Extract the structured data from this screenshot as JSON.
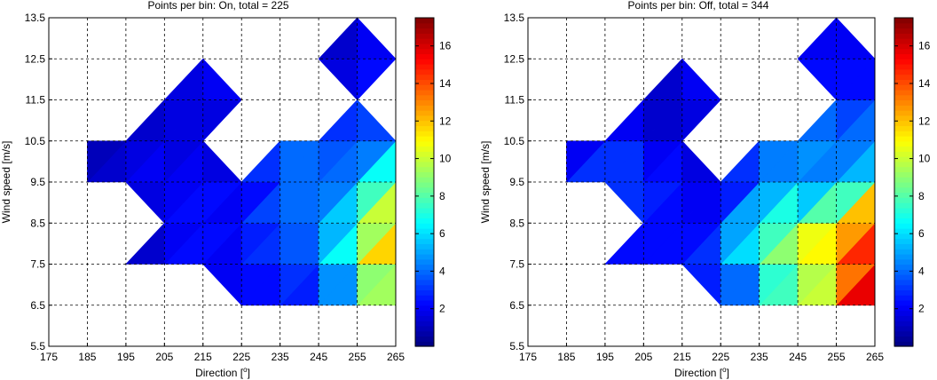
{
  "chart_data": [
    {
      "type": "heatmap",
      "title": "Points per bin: On, total = 225",
      "xlabel": "Direction [",
      "xlabel_sup": "o",
      "xlabel_end": "]",
      "ylabel": "Wind speed [m/s]",
      "x_ticks": [
        "175",
        "185",
        "195",
        "205",
        "215",
        "225",
        "235",
        "245",
        "255",
        "265"
      ],
      "y_ticks": [
        "5.5",
        "6.5",
        "7.5",
        "8.5",
        "9.5",
        "10.5",
        "11.5",
        "12.5",
        "13.5"
      ],
      "xlim": [
        175,
        265
      ],
      "ylim": [
        5.5,
        13.5
      ],
      "grid": true,
      "colorbar": {
        "range": [
          0,
          17.5
        ],
        "ticks": [
          "2",
          "4",
          "6",
          "8",
          "10",
          "12",
          "14",
          "16"
        ]
      },
      "x": [
        185,
        195,
        205,
        215,
        225,
        235,
        245,
        255,
        265
      ],
      "y": [
        6.5,
        7.5,
        8.5,
        9.5,
        10.5,
        11.5,
        12.5,
        13.5
      ],
      "z": [
        [
          null,
          null,
          null,
          null,
          2,
          2,
          2,
          4,
          9
        ],
        [
          null,
          1,
          2,
          2,
          2,
          3,
          4,
          8,
          15
        ],
        [
          null,
          null,
          1,
          3,
          2,
          4,
          4,
          8,
          12
        ],
        [
          1,
          2,
          2,
          3,
          1,
          4,
          4,
          5,
          10
        ],
        [
          1,
          1,
          2,
          1,
          null,
          4,
          4,
          3,
          5
        ],
        [
          null,
          null,
          1,
          2,
          2,
          null,
          null,
          2,
          null
        ],
        [
          null,
          null,
          null,
          2,
          null,
          null,
          1,
          2,
          3
        ],
        [
          null,
          null,
          null,
          null,
          null,
          null,
          null,
          1,
          null
        ]
      ]
    },
    {
      "type": "heatmap",
      "title": "Points per bin: Off, total = 344",
      "xlabel": "Direction [",
      "xlabel_sup": "o",
      "xlabel_end": "]",
      "ylabel": "Wind speed [m/s]",
      "x_ticks": [
        "175",
        "185",
        "195",
        "205",
        "215",
        "225",
        "235",
        "245",
        "255",
        "265"
      ],
      "y_ticks": [
        "5.5",
        "6.5",
        "7.5",
        "8.5",
        "9.5",
        "10.5",
        "11.5",
        "12.5",
        "13.5"
      ],
      "xlim": [
        175,
        265
      ],
      "ylim": [
        5.5,
        13.5
      ],
      "grid": true,
      "colorbar": {
        "range": [
          0,
          17.5
        ],
        "ticks": [
          "2",
          "4",
          "6",
          "8",
          "10",
          "12",
          "14",
          "16"
        ]
      },
      "x": [
        185,
        195,
        205,
        215,
        225,
        235,
        245,
        255,
        265
      ],
      "y": [
        6.5,
        7.5,
        8.5,
        9.5,
        10.5,
        11.5,
        12.5,
        13.5
      ],
      "z": [
        [
          null,
          null,
          null,
          null,
          2,
          4,
          7,
          13,
          17
        ],
        [
          null,
          2,
          3,
          2,
          4,
          6,
          12,
          10,
          17
        ],
        [
          null,
          null,
          2,
          2,
          3,
          8,
          9,
          11,
          17
        ],
        [
          2,
          4,
          3,
          3,
          1,
          4,
          4,
          4,
          8
        ],
        [
          1,
          3,
          2,
          1,
          null,
          4,
          5,
          5,
          4
        ],
        [
          null,
          null,
          1,
          1,
          3,
          null,
          null,
          2,
          3
        ],
        [
          null,
          null,
          null,
          2,
          null,
          null,
          2,
          3,
          2
        ],
        [
          null,
          null,
          null,
          null,
          null,
          null,
          null,
          1,
          null
        ]
      ]
    }
  ]
}
